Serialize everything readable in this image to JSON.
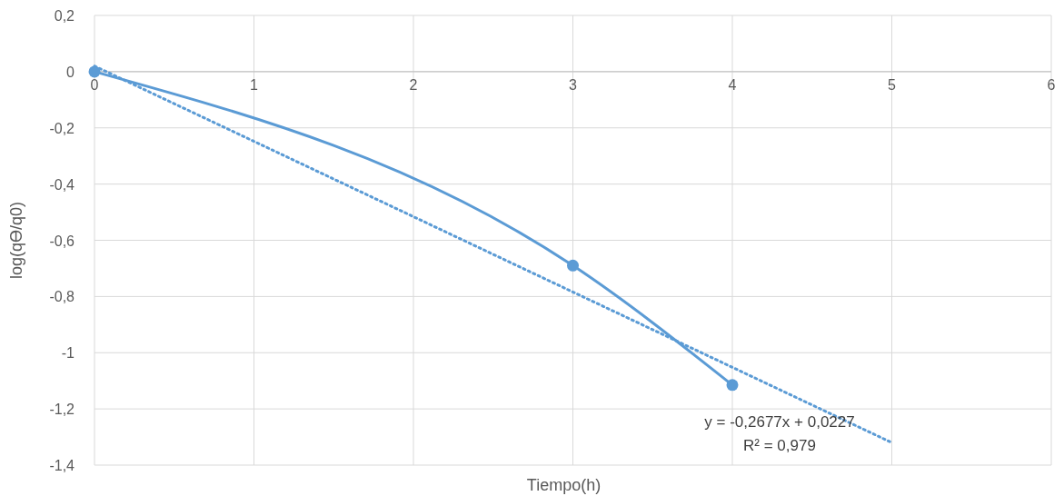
{
  "chart_data": {
    "type": "line",
    "xlabel": "Tiempo(h)",
    "ylabel": "log(qϴ/q0)",
    "xlim": [
      0,
      6
    ],
    "xticks": [
      0,
      1,
      2,
      3,
      4,
      5,
      6
    ],
    "ylim": [
      -1.4,
      0.2
    ],
    "yticks": [
      {
        "value": 0.2,
        "label": "0,2"
      },
      0,
      {
        "value": -0.2,
        "label": "-0,2"
      },
      {
        "value": -0.4,
        "label": "-0,4"
      },
      {
        "value": -0.6,
        "label": "-0,6"
      },
      {
        "value": -0.8,
        "label": "-0,8"
      },
      -1,
      {
        "value": -1.2,
        "label": "-1,2"
      },
      {
        "value": -1.4,
        "label": "-1,4"
      }
    ],
    "grid": true,
    "series": [
      {
        "color": "#5b9bd5",
        "x": [
          0,
          3,
          4
        ],
        "values": [
          0,
          -0.69,
          -1.115
        ],
        "marker": "circle",
        "line_style": "solid"
      },
      {
        "type": "line",
        "color": "#5b9bd5",
        "x": [
          0,
          5
        ],
        "values": [
          0.02,
          -1.32
        ],
        "marker": "none",
        "line_style": "dotted"
      }
    ],
    "annotations": [
      "y = -0,2677x + 0,0227",
      "R² = 0,979"
    ]
  }
}
